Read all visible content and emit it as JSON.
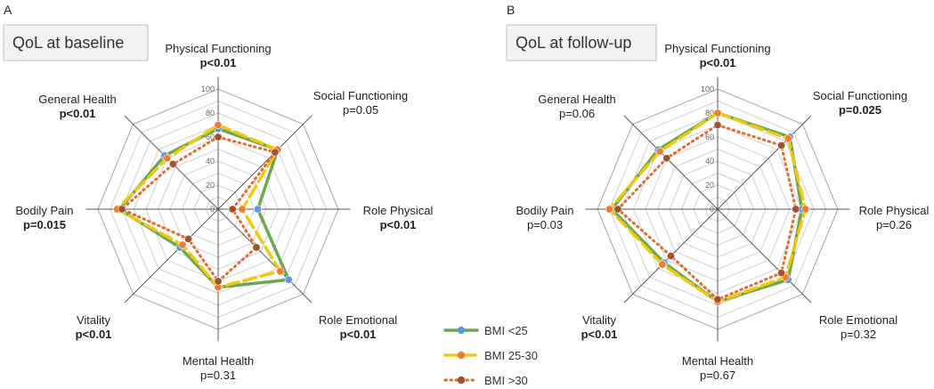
{
  "chart_data": [
    {
      "type": "radar",
      "panel": "A",
      "title": "QoL at baseline",
      "axes": [
        {
          "name": "Physical Functioning",
          "p": "p<0.01",
          "bold": true
        },
        {
          "name": "Social Functioning",
          "p": "p=0.05",
          "bold": false
        },
        {
          "name": "Role Physical",
          "p": "p<0.01",
          "bold": true
        },
        {
          "name": "Role Emotional",
          "p": "p<0.01",
          "bold": true
        },
        {
          "name": "Mental Health",
          "p": "p=0.31",
          "bold": false
        },
        {
          "name": "Vitality",
          "p": "p<0.01",
          "bold": true
        },
        {
          "name": "Bodily Pain",
          "p": "p=0.015",
          "bold": true
        },
        {
          "name": "General Health",
          "p": "p<0.01",
          "bold": true
        }
      ],
      "ticks": [
        0,
        20,
        40,
        60,
        80,
        100
      ],
      "range": [
        0,
        100
      ],
      "series": [
        {
          "name": "BMI <25",
          "values": [
            67,
            70,
            33,
            83,
            65,
            45,
            82,
            63
          ]
        },
        {
          "name": "BMI 25-30",
          "values": [
            70,
            70,
            20,
            73,
            65,
            42,
            84,
            60
          ]
        },
        {
          "name": "BMI >30",
          "values": [
            60,
            67,
            12,
            45,
            60,
            35,
            80,
            53
          ]
        }
      ]
    },
    {
      "type": "radar",
      "panel": "B",
      "title": "QoL at follow-up",
      "axes": [
        {
          "name": "Physical Functioning",
          "p": "p<0.01",
          "bold": true
        },
        {
          "name": "Social Functioning",
          "p": "p=0.025",
          "bold": true
        },
        {
          "name": "Role Physical",
          "p": "p=0.26",
          "bold": false
        },
        {
          "name": "Role Emotional",
          "p": "p=0.32",
          "bold": false
        },
        {
          "name": "Mental Health",
          "p": "p=0.67",
          "bold": false
        },
        {
          "name": "Vitality",
          "p": "p<0.01",
          "bold": true
        },
        {
          "name": "Bodily Pain",
          "p": "p=0.03",
          "bold": false
        },
        {
          "name": "General Health",
          "p": "p=0.06",
          "bold": false
        }
      ],
      "ticks": [
        0,
        20,
        40,
        60,
        80,
        100
      ],
      "range": [
        0,
        100
      ],
      "series": [
        {
          "name": "BMI <25",
          "values": [
            80,
            85,
            70,
            83,
            77,
            63,
            88,
            70
          ]
        },
        {
          "name": "BMI 25-30",
          "values": [
            80,
            83,
            73,
            80,
            77,
            65,
            90,
            68
          ]
        },
        {
          "name": "BMI >30",
          "values": [
            70,
            75,
            65,
            75,
            75,
            55,
            83,
            60
          ]
        }
      ]
    }
  ],
  "legend": [
    {
      "name": "BMI <25",
      "color": "#6aa84f",
      "marker": "#5b9bd5",
      "style": "solid"
    },
    {
      "name": "BMI 25-30",
      "color": "#f2c70e",
      "marker": "#ed7d31",
      "style": "dash"
    },
    {
      "name": "BMI >30",
      "color": "#e06c2f",
      "marker": "#a0522d",
      "style": "dot"
    }
  ]
}
